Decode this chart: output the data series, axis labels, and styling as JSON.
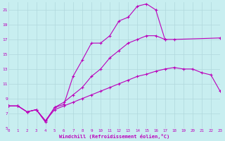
{
  "xlabel": "Windchill (Refroidissement éolien,°C)",
  "bg_color": "#c8eef0",
  "grid_color": "#b0d8dc",
  "line_color": "#bb00bb",
  "xlim": [
    0,
    23
  ],
  "ylim": [
    5,
    22
  ],
  "xticks": [
    0,
    1,
    2,
    3,
    4,
    5,
    6,
    7,
    8,
    9,
    10,
    11,
    12,
    13,
    14,
    15,
    16,
    17,
    18,
    19,
    20,
    21,
    22,
    23
  ],
  "yticks": [
    5,
    7,
    9,
    11,
    13,
    15,
    17,
    19,
    21
  ],
  "series1_x": [
    0,
    1,
    2,
    3,
    4,
    5,
    6,
    7,
    8,
    9,
    10,
    11,
    12,
    13,
    14,
    15,
    16,
    17
  ],
  "series1_y": [
    8.0,
    8.0,
    7.2,
    7.5,
    5.8,
    7.8,
    8.2,
    12.0,
    14.2,
    16.5,
    16.5,
    17.5,
    19.5,
    20.0,
    21.5,
    21.8,
    21.0,
    17.0
  ],
  "series2_x": [
    0,
    1,
    2,
    3,
    4,
    5,
    6,
    7,
    8,
    9,
    10,
    11,
    12,
    13,
    14,
    15,
    16,
    17,
    18,
    23
  ],
  "series2_y": [
    8.0,
    8.0,
    7.2,
    7.5,
    6.0,
    7.8,
    8.5,
    9.5,
    10.5,
    12.0,
    13.0,
    14.5,
    15.5,
    16.5,
    17.0,
    17.5,
    17.5,
    17.0,
    17.0,
    17.2
  ],
  "series3_x": [
    0,
    1,
    2,
    3,
    4,
    5,
    6,
    7,
    8,
    9,
    10,
    11,
    12,
    13,
    14,
    15,
    16,
    17,
    18,
    19,
    20,
    21,
    22,
    23
  ],
  "series3_y": [
    8.0,
    8.0,
    7.2,
    7.5,
    6.0,
    7.5,
    8.0,
    8.5,
    9.0,
    9.5,
    10.0,
    10.5,
    11.0,
    11.5,
    12.0,
    12.3,
    12.7,
    13.0,
    13.2,
    13.0,
    13.0,
    12.5,
    12.2,
    10.0
  ]
}
